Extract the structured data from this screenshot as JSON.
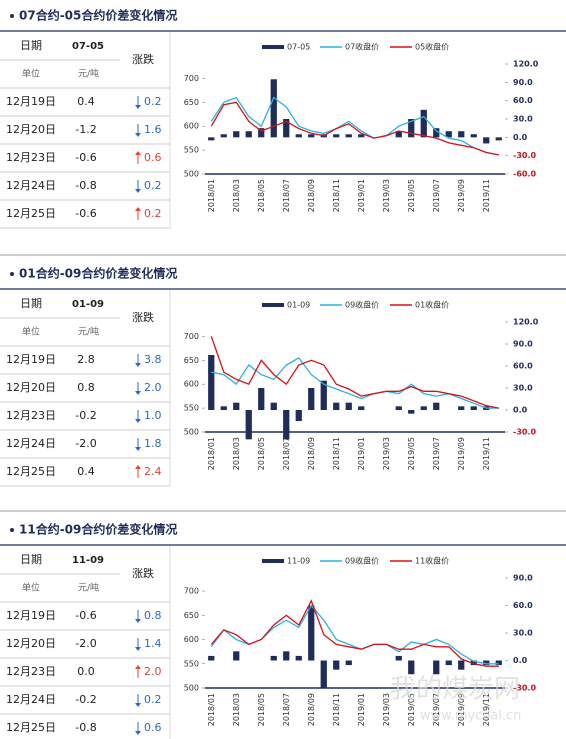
{
  "panels": [
    {
      "title": "07合约-05合约价差变化情况",
      "table": {
        "date_header": "日期",
        "contract": "07-05",
        "change_header": "涨跌",
        "unit_label": "单位",
        "unit": "元/吨",
        "rows": [
          {
            "date": "12月19日",
            "value": "0.4",
            "change": "0.2",
            "direction": "down"
          },
          {
            "date": "12月20日",
            "value": "-1.2",
            "change": "1.6",
            "direction": "down"
          },
          {
            "date": "12月23日",
            "value": "-0.6",
            "change": "0.6",
            "direction": "up"
          },
          {
            "date": "12月24日",
            "value": "-0.8",
            "change": "0.2",
            "direction": "down"
          },
          {
            "date": "12月25日",
            "value": "-0.6",
            "change": "0.2",
            "direction": "up"
          }
        ]
      }
    },
    {
      "title": "01合约-09合约价差变化情况",
      "table": {
        "date_header": "日期",
        "contract": "01-09",
        "change_header": "涨跌",
        "unit_label": "单位",
        "unit": "元/吨",
        "rows": [
          {
            "date": "12月19日",
            "value": "2.8",
            "change": "3.8",
            "direction": "down"
          },
          {
            "date": "12月20日",
            "value": "0.8",
            "change": "2.0",
            "direction": "down"
          },
          {
            "date": "12月23日",
            "value": "-0.2",
            "change": "1.0",
            "direction": "down"
          },
          {
            "date": "12月24日",
            "value": "-2.0",
            "change": "1.8",
            "direction": "down"
          },
          {
            "date": "12月25日",
            "value": "0.4",
            "change": "2.4",
            "direction": "up"
          }
        ]
      }
    },
    {
      "title": "11合约-09合约价差变化情况",
      "table": {
        "date_header": "日期",
        "contract": "11-09",
        "change_header": "涨跌",
        "unit_label": "单位",
        "unit": "元/吨",
        "rows": [
          {
            "date": "12月19日",
            "value": "-0.6",
            "change": "0.8",
            "direction": "down"
          },
          {
            "date": "12月20日",
            "value": "-2.0",
            "change": "1.4",
            "direction": "down"
          },
          {
            "date": "12月23日",
            "value": "0.0",
            "change": "2.0",
            "direction": "up"
          },
          {
            "date": "12月24日",
            "value": "-0.2",
            "change": "0.2",
            "direction": "down"
          },
          {
            "date": "12月25日",
            "value": "-0.8",
            "change": "0.6",
            "direction": "down"
          }
        ]
      }
    }
  ],
  "chart_data": [
    {
      "type": "bar-line",
      "categories": [
        "2018/01",
        null,
        "2018/03",
        null,
        "2018/05",
        null,
        "2018/07",
        null,
        "2018/09",
        null,
        "2018/11",
        null,
        "2019/01",
        null,
        "2019/03",
        null,
        "2019/05",
        null,
        "2019/07",
        null,
        "2019/09",
        null,
        "2019/11",
        null
      ],
      "series": [
        {
          "name": "07-05",
          "color": "#1f2d5a",
          "axis": "y2",
          "kind": "bar",
          "values": [
            -5,
            5,
            10,
            10,
            15,
            95,
            30,
            5,
            5,
            5,
            5,
            5,
            5,
            0,
            0,
            10,
            30,
            45,
            15,
            10,
            10,
            5,
            -10,
            -5
          ]
        },
        {
          "name": "07收盘价",
          "color": "#2eb0e0",
          "kind": "line",
          "values": [
            610,
            650,
            660,
            620,
            600,
            660,
            640,
            600,
            590,
            585,
            595,
            610,
            590,
            575,
            580,
            600,
            610,
            620,
            590,
            575,
            570,
            555,
            545,
            540
          ]
        },
        {
          "name": "05收盘价",
          "color": "#d4141a",
          "kind": "line",
          "values": [
            600,
            645,
            650,
            610,
            590,
            600,
            610,
            595,
            585,
            580,
            595,
            605,
            585,
            575,
            580,
            590,
            585,
            580,
            575,
            565,
            560,
            555,
            545,
            540
          ]
        }
      ],
      "ylim": [
        500,
        730
      ],
      "yticks": [
        500,
        550,
        600,
        650,
        700
      ],
      "y2lim": [
        -60,
        120
      ],
      "y2ticks": [
        {
          "value": 120,
          "label": "120.0"
        },
        {
          "value": 90,
          "label": "90.0"
        },
        {
          "value": 60,
          "label": "60.0"
        },
        {
          "value": 30,
          "label": "30.0"
        },
        {
          "value": 0,
          "label": "0.0"
        },
        {
          "value": -30,
          "label": "-30.0"
        },
        {
          "value": -60,
          "label": "-60.0"
        }
      ]
    },
    {
      "type": "bar-line",
      "categories": [
        "2018/01",
        null,
        "2018/03",
        null,
        "2018/05",
        null,
        "2018/07",
        null,
        "2018/09",
        null,
        "2018/11",
        null,
        "2019/01",
        null,
        "2019/03",
        null,
        "2019/05",
        null,
        "2019/07",
        null,
        "2019/09",
        null,
        "2019/11",
        null
      ],
      "series": [
        {
          "name": "01-09",
          "color": "#1f2d5a",
          "axis": "y2",
          "kind": "bar",
          "values": [
            75,
            5,
            10,
            -40,
            30,
            10,
            -40,
            -15,
            30,
            40,
            10,
            10,
            5,
            0,
            0,
            5,
            -5,
            5,
            10,
            0,
            5,
            5,
            5,
            0
          ]
        },
        {
          "name": "09收盘价",
          "color": "#2eb0e0",
          "kind": "line",
          "values": [
            625,
            620,
            600,
            640,
            620,
            610,
            640,
            655,
            620,
            600,
            590,
            580,
            570,
            580,
            585,
            580,
            600,
            580,
            575,
            580,
            570,
            560,
            550,
            550
          ]
        },
        {
          "name": "01收盘价",
          "color": "#d4141a",
          "kind": "line",
          "values": [
            700,
            625,
            610,
            600,
            650,
            620,
            600,
            640,
            650,
            640,
            600,
            590,
            575,
            580,
            585,
            585,
            595,
            585,
            585,
            580,
            575,
            565,
            555,
            550
          ]
        }
      ],
      "ylim": [
        500,
        730
      ],
      "yticks": [
        500,
        550,
        600,
        650,
        700
      ],
      "y2lim": [
        -30,
        120
      ],
      "y2ticks": [
        {
          "value": 120,
          "label": "120.0"
        },
        {
          "value": 90,
          "label": "90.0"
        },
        {
          "value": 60,
          "label": "60.0"
        },
        {
          "value": 30,
          "label": "30.0"
        },
        {
          "value": 0,
          "label": "0.0"
        },
        {
          "value": -30,
          "label": "-30.0"
        }
      ]
    },
    {
      "type": "bar-line",
      "categories": [
        "2018/01",
        null,
        "2018/03",
        null,
        "2018/05",
        null,
        "2018/07",
        null,
        "2018/09",
        null,
        "2018/11",
        null,
        "2019/01",
        null,
        "2019/03",
        null,
        "2019/05",
        null,
        "2019/07",
        null,
        "2019/09",
        null,
        "2019/11",
        null
      ],
      "series": [
        {
          "name": "11-09",
          "color": "#1f2d5a",
          "axis": "y2",
          "kind": "bar",
          "values": [
            5,
            0,
            10,
            0,
            0,
            5,
            10,
            5,
            60,
            -30,
            -10,
            -5,
            0,
            0,
            0,
            5,
            -15,
            0,
            -15,
            -5,
            -10,
            -5,
            -5,
            -5
          ]
        },
        {
          "name": "09收盘价",
          "color": "#2eb0e0",
          "kind": "line",
          "values": [
            585,
            620,
            600,
            590,
            600,
            625,
            640,
            625,
            670,
            640,
            600,
            590,
            580,
            590,
            590,
            575,
            595,
            590,
            600,
            590,
            570,
            555,
            550,
            550
          ]
        },
        {
          "name": "11收盘价",
          "color": "#d4141a",
          "kind": "line",
          "values": [
            590,
            620,
            610,
            590,
            600,
            630,
            650,
            630,
            680,
            610,
            590,
            585,
            580,
            590,
            590,
            580,
            580,
            590,
            585,
            585,
            560,
            550,
            545,
            545
          ]
        }
      ],
      "ylim": [
        500,
        727
      ],
      "yticks": [
        500,
        550,
        600,
        650,
        700
      ],
      "y2lim": [
        -30,
        90
      ],
      "y2ticks": [
        {
          "value": 90,
          "label": "90.0"
        },
        {
          "value": 60,
          "label": "60.0"
        },
        {
          "value": 30,
          "label": "30.0"
        },
        {
          "value": 0,
          "label": "0.0"
        },
        {
          "value": -30,
          "label": "-30.0"
        }
      ]
    }
  ],
  "watermark": {
    "text": "我的煤炭网",
    "url": "www.mycoal.cn"
  }
}
